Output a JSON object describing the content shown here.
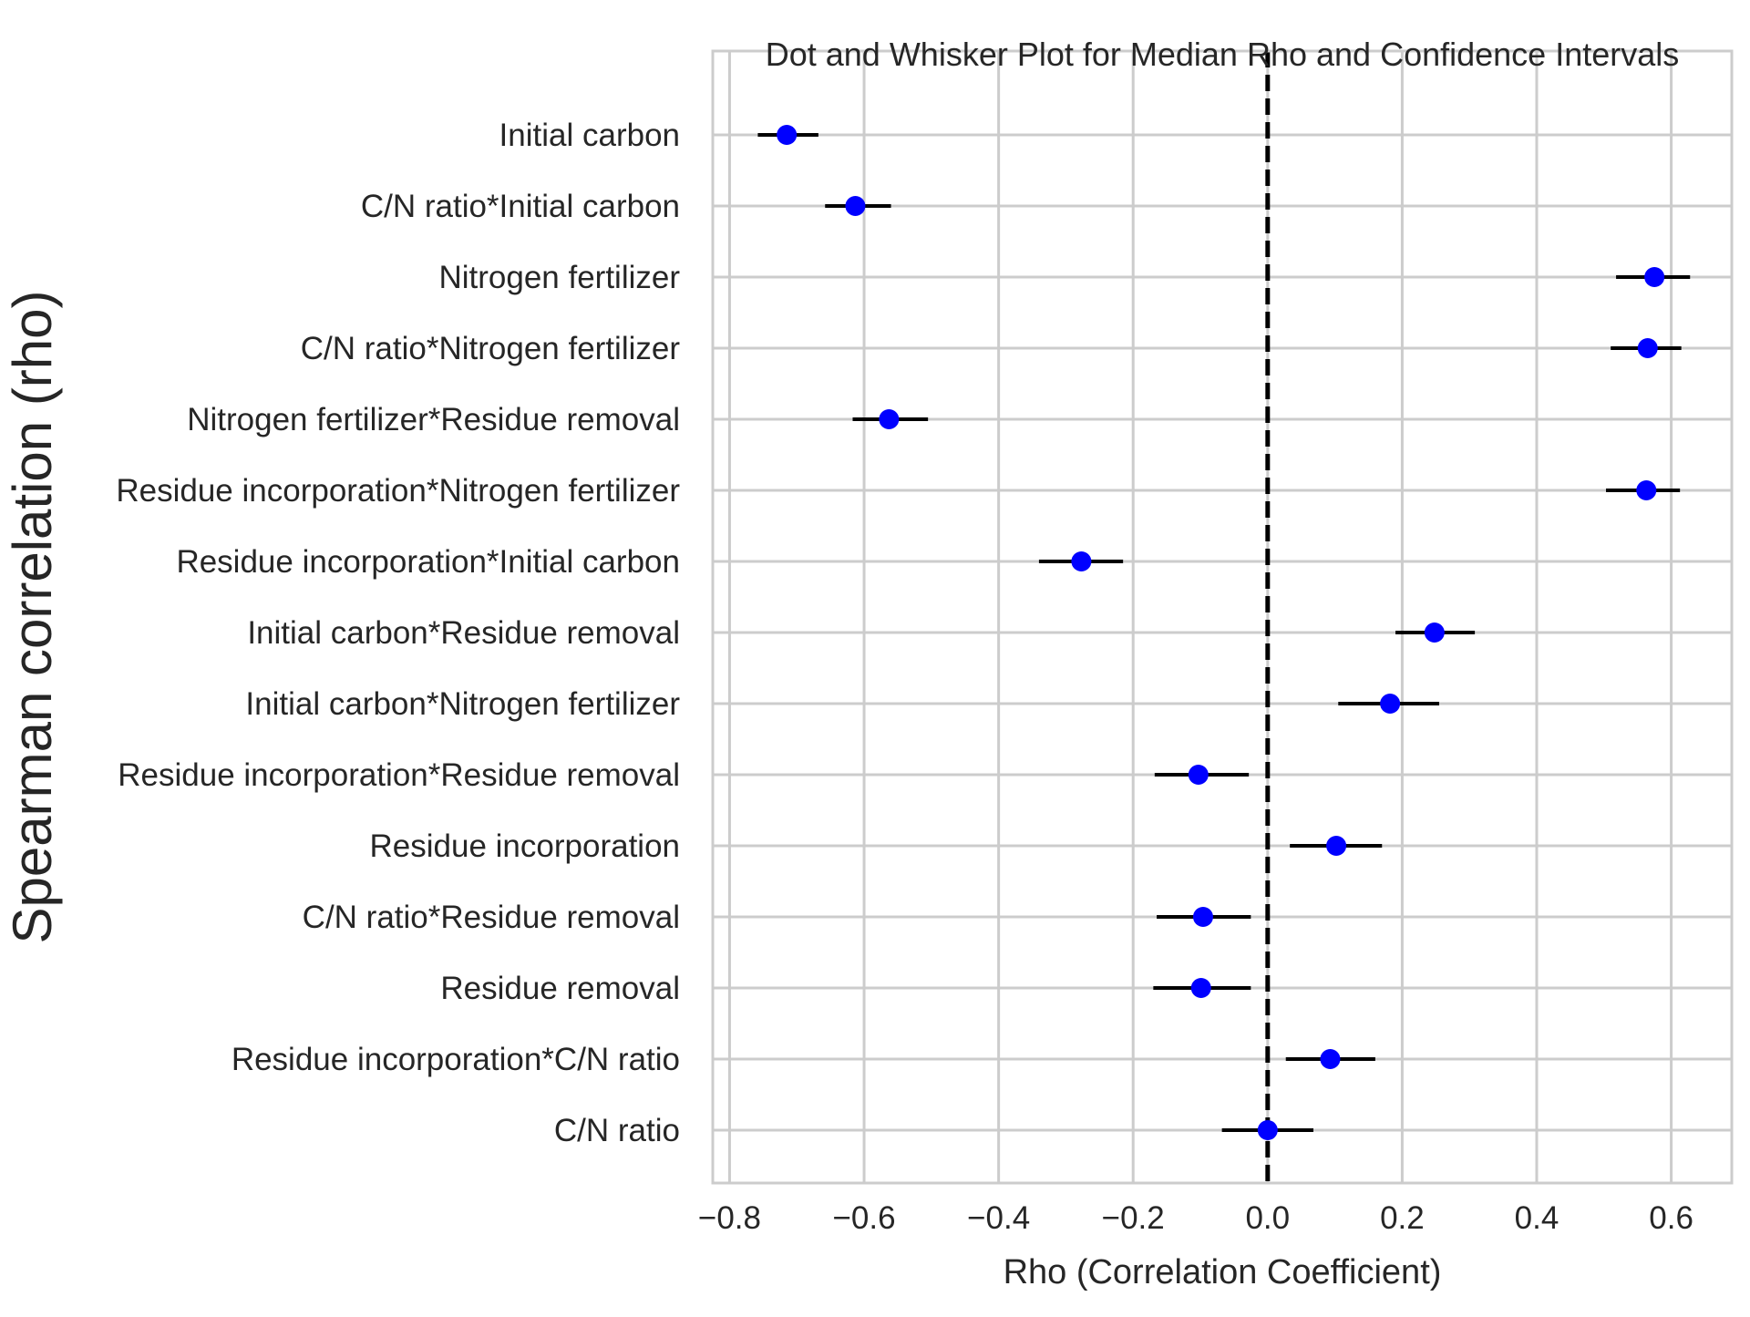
{
  "chart_data": {
    "type": "scatter",
    "title": "Dot and Whisker Plot for Median Rho and Confidence Intervals",
    "xlabel": "Rho (Correlation Coefficient)",
    "ylabel": "Spearman correlation (rho)",
    "xlim": [
      -0.825,
      0.69
    ],
    "xticks": [
      -0.8,
      -0.6,
      -0.4,
      -0.2,
      0.0,
      0.2,
      0.4,
      0.6
    ],
    "xtick_labels": [
      "−0.8",
      "−0.6",
      "−0.4",
      "−0.2",
      "0.0",
      "0.2",
      "0.4",
      "0.6"
    ],
    "grid": true,
    "reference_line": {
      "x": 0.0,
      "style": "dashed",
      "color": "#000000"
    },
    "marker_color": "#0000ff",
    "whisker_color": "#000000",
    "categories": [
      "Initial carbon",
      "C/N ratio*Initial carbon",
      "Nitrogen fertilizer",
      "C/N ratio*Nitrogen fertilizer",
      "Nitrogen fertilizer*Residue removal",
      "Residue incorporation*Nitrogen fertilizer",
      "Residue incorporation*Initial carbon",
      "Initial carbon*Residue removal",
      "Initial carbon*Nitrogen fertilizer",
      "Residue incorporation*Residue removal",
      "Residue incorporation",
      "C/N ratio*Residue removal",
      "Residue removal",
      "Residue incorporation*C/N ratio",
      "C/N ratio"
    ],
    "series": [
      {
        "median": [
          -0.715,
          -0.613,
          0.575,
          0.565,
          -0.563,
          0.563,
          -0.277,
          0.248,
          0.182,
          -0.103,
          0.102,
          -0.096,
          -0.099,
          0.093,
          0.0
        ],
        "ci_low": [
          -0.758,
          -0.658,
          0.518,
          0.51,
          -0.617,
          0.503,
          -0.34,
          0.19,
          0.105,
          -0.168,
          0.033,
          -0.165,
          -0.17,
          0.027,
          -0.068
        ],
        "ci_high": [
          -0.668,
          -0.56,
          0.628,
          0.615,
          -0.505,
          0.613,
          -0.215,
          0.308,
          0.255,
          -0.028,
          0.17,
          -0.025,
          -0.025,
          0.16,
          0.068
        ]
      }
    ]
  }
}
